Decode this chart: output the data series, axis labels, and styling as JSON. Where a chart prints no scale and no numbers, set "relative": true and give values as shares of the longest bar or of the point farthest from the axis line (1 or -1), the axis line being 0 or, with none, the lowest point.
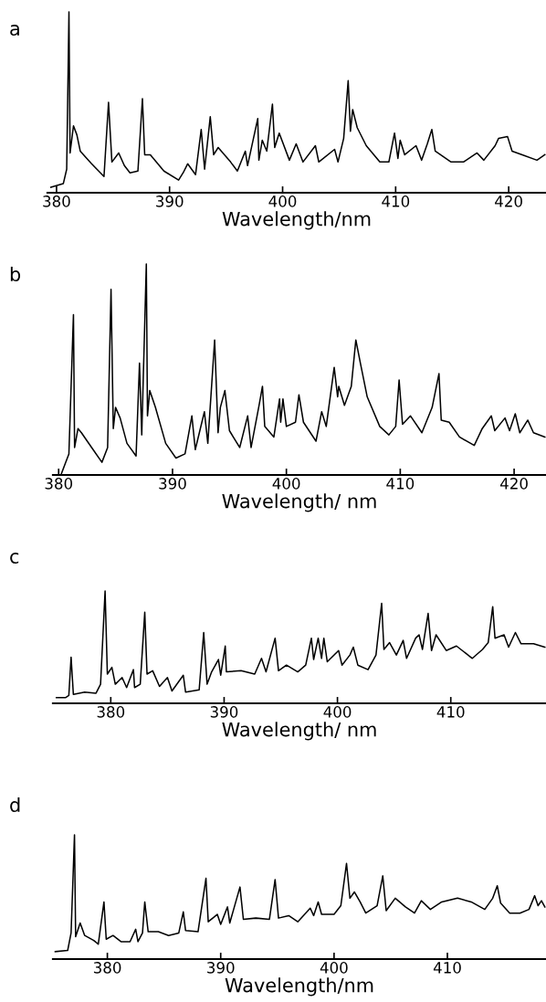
{
  "chart_data": [
    {
      "type": "line",
      "title": "a",
      "xlabel": "Wavelength/nm",
      "relative": true,
      "xlim": [
        379.2,
        423.3
      ],
      "xticks": [
        380,
        390,
        400,
        410,
        420
      ],
      "tick_labels": "x",
      "grid": false,
      "legend": false,
      "series": [
        {
          "color": "#000000",
          "x": [
            379.5,
            380.6,
            380.9,
            381.1,
            381.2,
            381.5,
            381.8,
            382.1,
            383.1,
            384.2,
            384.6,
            384.9,
            385.5,
            386.0,
            386.5,
            387.2,
            387.6,
            387.8,
            388.3,
            389.5,
            390.8,
            391.2,
            391.6,
            392.3,
            392.8,
            393.1,
            393.6,
            393.9,
            394.3,
            395.4,
            396.0,
            396.7,
            396.9,
            397.8,
            397.9,
            398.2,
            398.6,
            399.1,
            399.3,
            399.7,
            400.6,
            401.2,
            401.8,
            402.9,
            403.2,
            404.6,
            404.9,
            405.4,
            405.8,
            406.0,
            406.2,
            406.6,
            407.4,
            408.6,
            409.4,
            409.9,
            410.2,
            410.4,
            410.8,
            411.8,
            412.3,
            412.8,
            413.2,
            413.5,
            414.9,
            416.0,
            417.2,
            417.8,
            418.8,
            419.1,
            419.9,
            420.3,
            421.2,
            422.5,
            423.2
          ],
          "values": [
            0.03,
            0.05,
            0.13,
            1.0,
            0.22,
            0.37,
            0.32,
            0.23,
            0.16,
            0.09,
            0.5,
            0.17,
            0.22,
            0.15,
            0.11,
            0.12,
            0.52,
            0.21,
            0.21,
            0.12,
            0.07,
            0.11,
            0.16,
            0.1,
            0.35,
            0.13,
            0.42,
            0.21,
            0.25,
            0.17,
            0.12,
            0.23,
            0.15,
            0.41,
            0.18,
            0.29,
            0.23,
            0.49,
            0.25,
            0.33,
            0.18,
            0.27,
            0.17,
            0.26,
            0.17,
            0.24,
            0.17,
            0.3,
            0.62,
            0.34,
            0.46,
            0.36,
            0.26,
            0.17,
            0.17,
            0.33,
            0.19,
            0.29,
            0.21,
            0.26,
            0.18,
            0.27,
            0.35,
            0.23,
            0.17,
            0.17,
            0.22,
            0.18,
            0.26,
            0.3,
            0.31,
            0.23,
            0.21,
            0.18,
            0.21
          ]
        }
      ]
    },
    {
      "type": "line",
      "title": "b",
      "xlabel": "Wavelength/ nm",
      "relative": true,
      "xlim": [
        379.5,
        422.8
      ],
      "xticks": [
        380,
        390,
        400,
        410,
        420
      ],
      "tick_labels": "x",
      "grid": false,
      "legend": false,
      "series": [
        {
          "color": "#000000",
          "x": [
            380.2,
            380.9,
            381.3,
            381.4,
            381.7,
            382.0,
            382.9,
            383.8,
            384.3,
            384.6,
            384.8,
            385.0,
            385.4,
            386.0,
            386.8,
            387.1,
            387.3,
            387.7,
            387.8,
            388.0,
            388.5,
            389.4,
            390.3,
            391.1,
            391.7,
            392.0,
            392.8,
            393.1,
            393.7,
            394.0,
            394.2,
            394.6,
            395.0,
            395.9,
            396.6,
            396.9,
            397.6,
            397.9,
            398.1,
            398.9,
            399.4,
            399.5,
            399.7,
            400.0,
            400.8,
            401.1,
            401.5,
            402.6,
            403.1,
            403.5,
            404.2,
            404.5,
            404.6,
            405.1,
            405.7,
            406.1,
            406.5,
            407.1,
            408.2,
            409.0,
            409.6,
            409.9,
            410.2,
            410.9,
            411.9,
            412.8,
            413.4,
            413.6,
            414.3,
            415.2,
            416.5,
            417.2,
            418.0,
            418.3,
            419.2,
            419.6,
            420.1,
            420.5,
            421.2,
            421.7,
            422.7
          ],
          "values": [
            0.0,
            0.1,
            0.76,
            0.13,
            0.22,
            0.2,
            0.13,
            0.06,
            0.13,
            0.88,
            0.22,
            0.32,
            0.27,
            0.15,
            0.09,
            0.53,
            0.19,
            1.0,
            0.28,
            0.4,
            0.32,
            0.15,
            0.08,
            0.1,
            0.28,
            0.12,
            0.3,
            0.15,
            0.64,
            0.2,
            0.32,
            0.4,
            0.21,
            0.13,
            0.28,
            0.13,
            0.33,
            0.42,
            0.23,
            0.18,
            0.36,
            0.25,
            0.36,
            0.23,
            0.25,
            0.38,
            0.25,
            0.16,
            0.3,
            0.23,
            0.51,
            0.37,
            0.42,
            0.33,
            0.42,
            0.64,
            0.53,
            0.37,
            0.23,
            0.19,
            0.23,
            0.45,
            0.24,
            0.28,
            0.2,
            0.32,
            0.48,
            0.26,
            0.25,
            0.18,
            0.14,
            0.22,
            0.28,
            0.21,
            0.27,
            0.21,
            0.29,
            0.2,
            0.26,
            0.2,
            0.18
          ]
        }
      ]
    },
    {
      "type": "line",
      "title": "c",
      "xlabel": "Wavelength/ nm",
      "relative": true,
      "xlim": [
        374.9,
        418.4
      ],
      "xticks": [
        380,
        390,
        400,
        410
      ],
      "tick_labels": "x",
      "grid": false,
      "legend": false,
      "series": [
        {
          "color": "#000000",
          "x": [
            375.2,
            376.0,
            376.3,
            376.5,
            376.7,
            377.7,
            378.7,
            379.1,
            379.5,
            379.7,
            380.1,
            380.4,
            381.0,
            381.4,
            382.0,
            382.1,
            382.6,
            383.0,
            383.2,
            383.7,
            384.3,
            385.0,
            385.4,
            386.4,
            386.6,
            387.8,
            388.2,
            388.5,
            388.9,
            389.5,
            389.7,
            390.1,
            390.2,
            391.5,
            392.7,
            393.3,
            393.7,
            394.5,
            394.8,
            395.5,
            396.5,
            397.2,
            397.7,
            397.9,
            398.3,
            398.6,
            398.8,
            399.1,
            400.1,
            400.4,
            401.1,
            401.4,
            401.8,
            402.7,
            403.4,
            403.9,
            404.1,
            404.6,
            405.2,
            405.8,
            406.1,
            406.9,
            407.2,
            407.5,
            408.0,
            408.3,
            408.7,
            409.6,
            410.5,
            411.9,
            412.8,
            413.3,
            413.7,
            413.9,
            414.7,
            415.1,
            415.7,
            416.2,
            417.3,
            418.3
          ],
          "values": [
            0.05,
            0.05,
            0.07,
            0.41,
            0.08,
            0.1,
            0.09,
            0.17,
            1.0,
            0.26,
            0.32,
            0.17,
            0.23,
            0.14,
            0.3,
            0.14,
            0.17,
            0.81,
            0.26,
            0.29,
            0.15,
            0.23,
            0.11,
            0.25,
            0.1,
            0.12,
            0.63,
            0.17,
            0.28,
            0.39,
            0.25,
            0.51,
            0.28,
            0.29,
            0.26,
            0.4,
            0.28,
            0.58,
            0.29,
            0.34,
            0.28,
            0.34,
            0.58,
            0.39,
            0.58,
            0.4,
            0.58,
            0.37,
            0.47,
            0.34,
            0.43,
            0.5,
            0.34,
            0.3,
            0.43,
            0.89,
            0.48,
            0.54,
            0.43,
            0.56,
            0.4,
            0.58,
            0.61,
            0.48,
            0.8,
            0.47,
            0.61,
            0.47,
            0.51,
            0.4,
            0.48,
            0.54,
            0.86,
            0.58,
            0.61,
            0.5,
            0.63,
            0.53,
            0.53,
            0.5
          ]
        }
      ]
    },
    {
      "type": "line",
      "title": "d",
      "xlabel": "Wavelength/nm",
      "relative": true,
      "xlim": [
        375.2,
        418.7
      ],
      "xticks": [
        380,
        390,
        400,
        410
      ],
      "tick_labels": "x",
      "grid": false,
      "legend": false,
      "series": [
        {
          "color": "#000000",
          "x": [
            375.4,
            376.5,
            376.8,
            377.1,
            377.2,
            377.6,
            378.0,
            378.8,
            379.2,
            379.7,
            379.9,
            380.5,
            381.2,
            382.0,
            382.5,
            382.7,
            383.1,
            383.3,
            383.6,
            384.5,
            385.4,
            386.3,
            386.7,
            386.9,
            388.0,
            388.7,
            388.9,
            389.7,
            390.0,
            390.6,
            390.8,
            391.7,
            392.0,
            393.1,
            394.3,
            394.8,
            395.1,
            396.0,
            396.8,
            397.9,
            398.2,
            398.6,
            398.9,
            400.0,
            400.6,
            401.1,
            401.4,
            401.8,
            402.3,
            402.8,
            403.8,
            404.3,
            404.6,
            405.4,
            406.3,
            407.1,
            407.7,
            408.5,
            409.5,
            410.9,
            412.1,
            413.3,
            414.0,
            414.4,
            414.7,
            415.5,
            416.4,
            417.2,
            417.7,
            418.0,
            418.3,
            418.6
          ],
          "values": [
            0.06,
            0.07,
            0.21,
            1.0,
            0.18,
            0.29,
            0.19,
            0.15,
            0.12,
            0.46,
            0.16,
            0.19,
            0.14,
            0.14,
            0.24,
            0.14,
            0.21,
            0.46,
            0.22,
            0.22,
            0.19,
            0.21,
            0.38,
            0.23,
            0.22,
            0.65,
            0.3,
            0.36,
            0.28,
            0.42,
            0.29,
            0.58,
            0.32,
            0.33,
            0.32,
            0.64,
            0.33,
            0.35,
            0.3,
            0.41,
            0.35,
            0.46,
            0.36,
            0.36,
            0.43,
            0.77,
            0.49,
            0.54,
            0.46,
            0.37,
            0.43,
            0.67,
            0.39,
            0.49,
            0.42,
            0.37,
            0.47,
            0.4,
            0.46,
            0.49,
            0.46,
            0.4,
            0.49,
            0.59,
            0.45,
            0.37,
            0.37,
            0.4,
            0.51,
            0.43,
            0.47,
            0.42
          ]
        }
      ]
    }
  ]
}
